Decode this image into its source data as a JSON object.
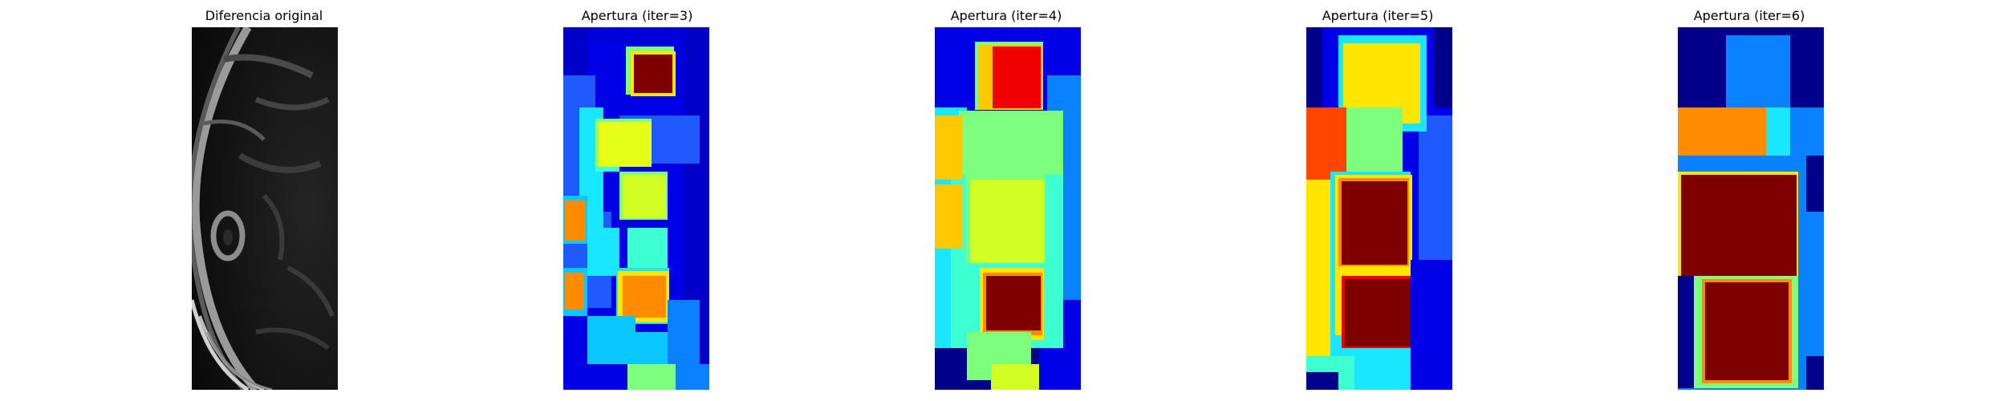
{
  "figure": {
    "panels": [
      {
        "title": "Diferencia original",
        "colormap": "gray"
      },
      {
        "title": "Apertura (iter=3)",
        "colormap": "jet"
      },
      {
        "title": "Apertura (iter=4)",
        "colormap": "jet"
      },
      {
        "title": "Apertura (iter=5)",
        "colormap": "jet"
      },
      {
        "title": "Apertura (iter=6)",
        "colormap": "jet"
      }
    ]
  },
  "colors": {
    "background": "#ffffff",
    "jet_dark_blue": "#00008b",
    "jet_blue": "#0000e6",
    "jet_mid_blue": "#1e5aff",
    "jet_azure": "#0a82ff",
    "jet_cyan": "#19e6ff",
    "jet_aqua": "#3cffd2",
    "jet_green": "#7dff7d",
    "jet_yellow_green": "#d2ff23",
    "jet_yellow": "#ffe600",
    "jet_orange": "#ff8c00",
    "jet_red": "#f00000",
    "jet_dark_red": "#7f0000"
  }
}
